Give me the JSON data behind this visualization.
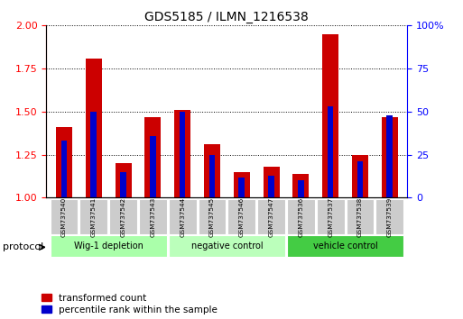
{
  "title": "GDS5185 / ILMN_1216538",
  "samples": [
    "GSM737540",
    "GSM737541",
    "GSM737542",
    "GSM737543",
    "GSM737544",
    "GSM737545",
    "GSM737546",
    "GSM737547",
    "GSM737536",
    "GSM737537",
    "GSM737538",
    "GSM737539"
  ],
  "transformed_count": [
    1.41,
    1.81,
    1.2,
    1.47,
    1.51,
    1.31,
    1.15,
    1.18,
    1.14,
    1.95,
    1.25,
    1.47
  ],
  "percentile_rank": [
    33,
    50,
    15,
    36,
    50,
    25,
    12,
    13,
    10,
    53,
    21,
    48
  ],
  "groups": [
    {
      "label": "Wig-1 depletion",
      "indices": [
        0,
        1,
        2,
        3
      ]
    },
    {
      "label": "negative control",
      "indices": [
        4,
        5,
        6,
        7
      ]
    },
    {
      "label": "vehicle control",
      "indices": [
        8,
        9,
        10,
        11
      ]
    }
  ],
  "ylim_left": [
    1.0,
    2.0
  ],
  "ylim_right": [
    0,
    100
  ],
  "yticks_left": [
    1.0,
    1.25,
    1.5,
    1.75,
    2.0
  ],
  "yticks_right": [
    0,
    25,
    50,
    75,
    100
  ],
  "bar_color_red": "#cc0000",
  "bar_color_blue": "#0000cc",
  "red_bar_width": 0.55,
  "blue_bar_width": 0.2,
  "group_colors": [
    "#aaffaa",
    "#bbffbb",
    "#44cc44"
  ]
}
